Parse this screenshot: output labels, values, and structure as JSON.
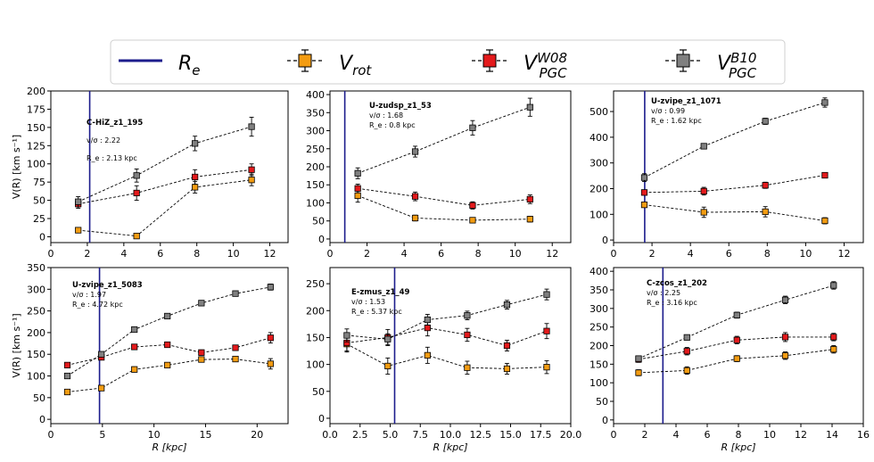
{
  "legend": {
    "entries": [
      {
        "kind": "line",
        "label": "R",
        "sub": "e",
        "sup": "",
        "color": "#1c1c8c"
      },
      {
        "kind": "marker",
        "label": "V",
        "sub": "rot",
        "sup": "",
        "color": "#f39c12"
      },
      {
        "kind": "marker",
        "label": "V",
        "sub": "PGC",
        "sup": "W08",
        "color": "#e31a1c"
      },
      {
        "kind": "marker",
        "label": "V",
        "sub": "PGC",
        "sup": "B10",
        "color": "#808080"
      }
    ]
  },
  "chart_data": [
    {
      "type": "line",
      "title": "C-HiZ_z1_195",
      "info": [
        "v/σ : 2.22",
        "R_e : 2.13 kpc"
      ],
      "xlabel": "",
      "ylabel": "V(R) [km s⁻¹]",
      "xlim": [
        0,
        13
      ],
      "ylim": [
        -8,
        200
      ],
      "xticks": [
        0,
        2,
        4,
        6,
        8,
        10,
        12
      ],
      "xtick_labels": [
        "0",
        "2",
        "4",
        "6",
        "8",
        "10",
        "12"
      ],
      "yticks": [
        0,
        25,
        50,
        75,
        100,
        125,
        150,
        175,
        200
      ],
      "re": 2.13,
      "series": [
        {
          "name": "V_rot",
          "color": "#f39c12",
          "x": [
            1.5,
            4.7,
            7.9,
            11.0
          ],
          "values": [
            9,
            1,
            68,
            78
          ],
          "err": [
            2,
            2,
            8,
            8
          ]
        },
        {
          "name": "V_PGC_W08",
          "color": "#e31a1c",
          "x": [
            1.5,
            4.7,
            7.9,
            11.0
          ],
          "values": [
            45,
            60,
            82,
            92
          ],
          "err": [
            6,
            10,
            10,
            8
          ]
        },
        {
          "name": "V_PGC_B10",
          "color": "#808080",
          "x": [
            1.5,
            4.7,
            7.9,
            11.0
          ],
          "values": [
            48,
            84,
            128,
            151
          ],
          "err": [
            7,
            9,
            10,
            13
          ]
        }
      ]
    },
    {
      "type": "line",
      "title": "U-zudsp_z1_53",
      "info": [
        "v/σ : 1.68",
        "R_e : 0.8 kpc"
      ],
      "xlabel": "",
      "ylabel": "",
      "xlim": [
        0,
        13
      ],
      "ylim": [
        -10,
        410
      ],
      "xticks": [
        0,
        2,
        4,
        6,
        8,
        10,
        12
      ],
      "xtick_labels": [
        "0",
        "2",
        "4",
        "6",
        "8",
        "10",
        "12"
      ],
      "yticks": [
        0,
        50,
        100,
        150,
        200,
        250,
        300,
        350,
        400
      ],
      "re": 0.8,
      "series": [
        {
          "name": "V_rot",
          "color": "#f39c12",
          "x": [
            1.5,
            4.6,
            7.7,
            10.8
          ],
          "values": [
            120,
            58,
            52,
            55
          ],
          "err": [
            18,
            8,
            5,
            8
          ]
        },
        {
          "name": "V_PGC_W08",
          "color": "#e31a1c",
          "x": [
            1.5,
            4.6,
            7.7,
            10.8
          ],
          "values": [
            140,
            118,
            93,
            110
          ],
          "err": [
            12,
            12,
            10,
            12
          ]
        },
        {
          "name": "V_PGC_B10",
          "color": "#808080",
          "x": [
            1.5,
            4.6,
            7.7,
            10.8
          ],
          "values": [
            182,
            242,
            308,
            365
          ],
          "err": [
            15,
            15,
            20,
            25
          ]
        }
      ]
    },
    {
      "type": "line",
      "title": "U-zvipe_z1_1071",
      "info": [
        "v/σ : 0.99",
        "R_e : 1.62 kpc"
      ],
      "xlabel": "",
      "ylabel": "",
      "xlim": [
        0,
        13
      ],
      "ylim": [
        -10,
        580
      ],
      "xticks": [
        0,
        2,
        4,
        6,
        8,
        10,
        12
      ],
      "xtick_labels": [
        "0",
        "2",
        "4",
        "6",
        "8",
        "10",
        "12"
      ],
      "yticks": [
        0,
        100,
        200,
        300,
        400,
        500
      ],
      "re": 1.62,
      "series": [
        {
          "name": "V_rot",
          "color": "#f39c12",
          "x": [
            1.6,
            4.7,
            7.9,
            11.0
          ],
          "values": [
            137,
            108,
            110,
            75
          ],
          "err": [
            10,
            20,
            20,
            12
          ]
        },
        {
          "name": "V_PGC_W08",
          "color": "#e31a1c",
          "x": [
            1.6,
            4.7,
            7.9,
            11.0
          ],
          "values": [
            185,
            190,
            213,
            252
          ],
          "err": [
            10,
            15,
            12,
            10
          ]
        },
        {
          "name": "V_PGC_B10",
          "color": "#808080",
          "x": [
            1.6,
            4.7,
            7.9,
            11.0
          ],
          "values": [
            243,
            365,
            462,
            535
          ],
          "err": [
            15,
            10,
            12,
            18
          ]
        }
      ]
    },
    {
      "type": "line",
      "title": "U-zvipe_z1_5083",
      "info": [
        "v/σ : 1.97",
        "R_e : 4.72 kpc"
      ],
      "xlabel": "R [kpc]",
      "ylabel": "V(R) [km s⁻¹]",
      "xlim": [
        0,
        23
      ],
      "ylim": [
        -10,
        350
      ],
      "xticks": [
        0,
        5,
        10,
        15,
        20
      ],
      "xtick_labels": [
        "0",
        "5",
        "10",
        "15",
        "20"
      ],
      "yticks": [
        0,
        50,
        100,
        150,
        200,
        250,
        300,
        350
      ],
      "re": 4.72,
      "series": [
        {
          "name": "V_rot",
          "color": "#f39c12",
          "x": [
            1.6,
            4.9,
            8.1,
            11.3,
            14.6,
            17.9,
            21.3
          ],
          "values": [
            63,
            72,
            115,
            125,
            138,
            139,
            128
          ],
          "err": [
            6,
            6,
            6,
            6,
            6,
            6,
            12
          ]
        },
        {
          "name": "V_PGC_W08",
          "color": "#e31a1c",
          "x": [
            1.6,
            4.9,
            8.1,
            11.3,
            14.6,
            17.9,
            21.3
          ],
          "values": [
            125,
            143,
            167,
            172,
            154,
            165,
            188
          ],
          "err": [
            6,
            6,
            6,
            6,
            6,
            6,
            12
          ]
        },
        {
          "name": "V_PGC_B10",
          "color": "#808080",
          "x": [
            1.6,
            4.9,
            8.1,
            11.3,
            14.6,
            17.9,
            21.3
          ],
          "values": [
            100,
            150,
            207,
            238,
            268,
            290,
            305
          ],
          "err": [
            5,
            5,
            5,
            5,
            5,
            5,
            7
          ]
        }
      ]
    },
    {
      "type": "line",
      "title": "E-zmus_z1_49",
      "info": [
        "v/σ : 1.53",
        "R_e : 5.37 kpc"
      ],
      "xlabel": "R [kpc]",
      "ylabel": "",
      "xlim": [
        0,
        20
      ],
      "ylim": [
        -10,
        280
      ],
      "xticks": [
        0,
        2.5,
        5,
        7.5,
        10,
        12.5,
        15,
        17.5,
        20
      ],
      "xtick_labels": [
        "0.0",
        "2.5",
        "5.0",
        "7.5",
        "10.0",
        "12.5",
        "15.0",
        "17.5",
        "20.0"
      ],
      "yticks": [
        0,
        50,
        100,
        150,
        200,
        250
      ],
      "re": 5.37,
      "series": [
        {
          "name": "V_rot",
          "color": "#f39c12",
          "x": [
            1.4,
            4.8,
            8.1,
            11.4,
            14.7,
            18.0
          ],
          "values": [
            138,
            97,
            117,
            94,
            92,
            95
          ],
          "err": [
            15,
            15,
            15,
            12,
            10,
            12
          ]
        },
        {
          "name": "V_PGC_W08",
          "color": "#e31a1c",
          "x": [
            1.4,
            4.8,
            8.1,
            11.4,
            14.7,
            18.0
          ],
          "values": [
            140,
            150,
            168,
            155,
            135,
            162
          ],
          "err": [
            15,
            15,
            15,
            12,
            10,
            14
          ]
        },
        {
          "name": "V_PGC_B10",
          "color": "#808080",
          "x": [
            1.4,
            4.8,
            8.1,
            11.4,
            14.7,
            18.0
          ],
          "values": [
            154,
            147,
            183,
            191,
            211,
            230
          ],
          "err": [
            12,
            10,
            10,
            8,
            8,
            10
          ]
        }
      ]
    },
    {
      "type": "line",
      "title": "C-zcos_z1_202",
      "info": [
        "v/σ : 2.25",
        "R_e : 3.16 kpc"
      ],
      "xlabel": "R [kpc]",
      "ylabel": "",
      "xlim": [
        0,
        16
      ],
      "ylim": [
        -10,
        410
      ],
      "xticks": [
        0,
        2,
        4,
        6,
        8,
        10,
        12,
        14,
        16
      ],
      "xtick_labels": [
        "0",
        "2",
        "4",
        "6",
        "8",
        "10",
        "12",
        "14",
        "16"
      ],
      "yticks": [
        0,
        50,
        100,
        150,
        200,
        250,
        300,
        350,
        400
      ],
      "re": 3.16,
      "series": [
        {
          "name": "V_rot",
          "color": "#f39c12",
          "x": [
            1.6,
            4.7,
            7.9,
            11.0,
            14.1
          ],
          "values": [
            127,
            133,
            165,
            173,
            190
          ],
          "err": [
            8,
            10,
            8,
            10,
            10
          ]
        },
        {
          "name": "V_PGC_W08",
          "color": "#e31a1c",
          "x": [
            1.6,
            4.7,
            7.9,
            11.0,
            14.1
          ],
          "values": [
            163,
            185,
            215,
            223,
            223
          ],
          "err": [
            8,
            10,
            10,
            12,
            10
          ]
        },
        {
          "name": "V_PGC_B10",
          "color": "#808080",
          "x": [
            1.6,
            4.7,
            7.9,
            11.0,
            14.1
          ],
          "values": [
            165,
            222,
            282,
            323,
            362
          ],
          "err": [
            6,
            6,
            8,
            10,
            10
          ]
        }
      ]
    }
  ]
}
